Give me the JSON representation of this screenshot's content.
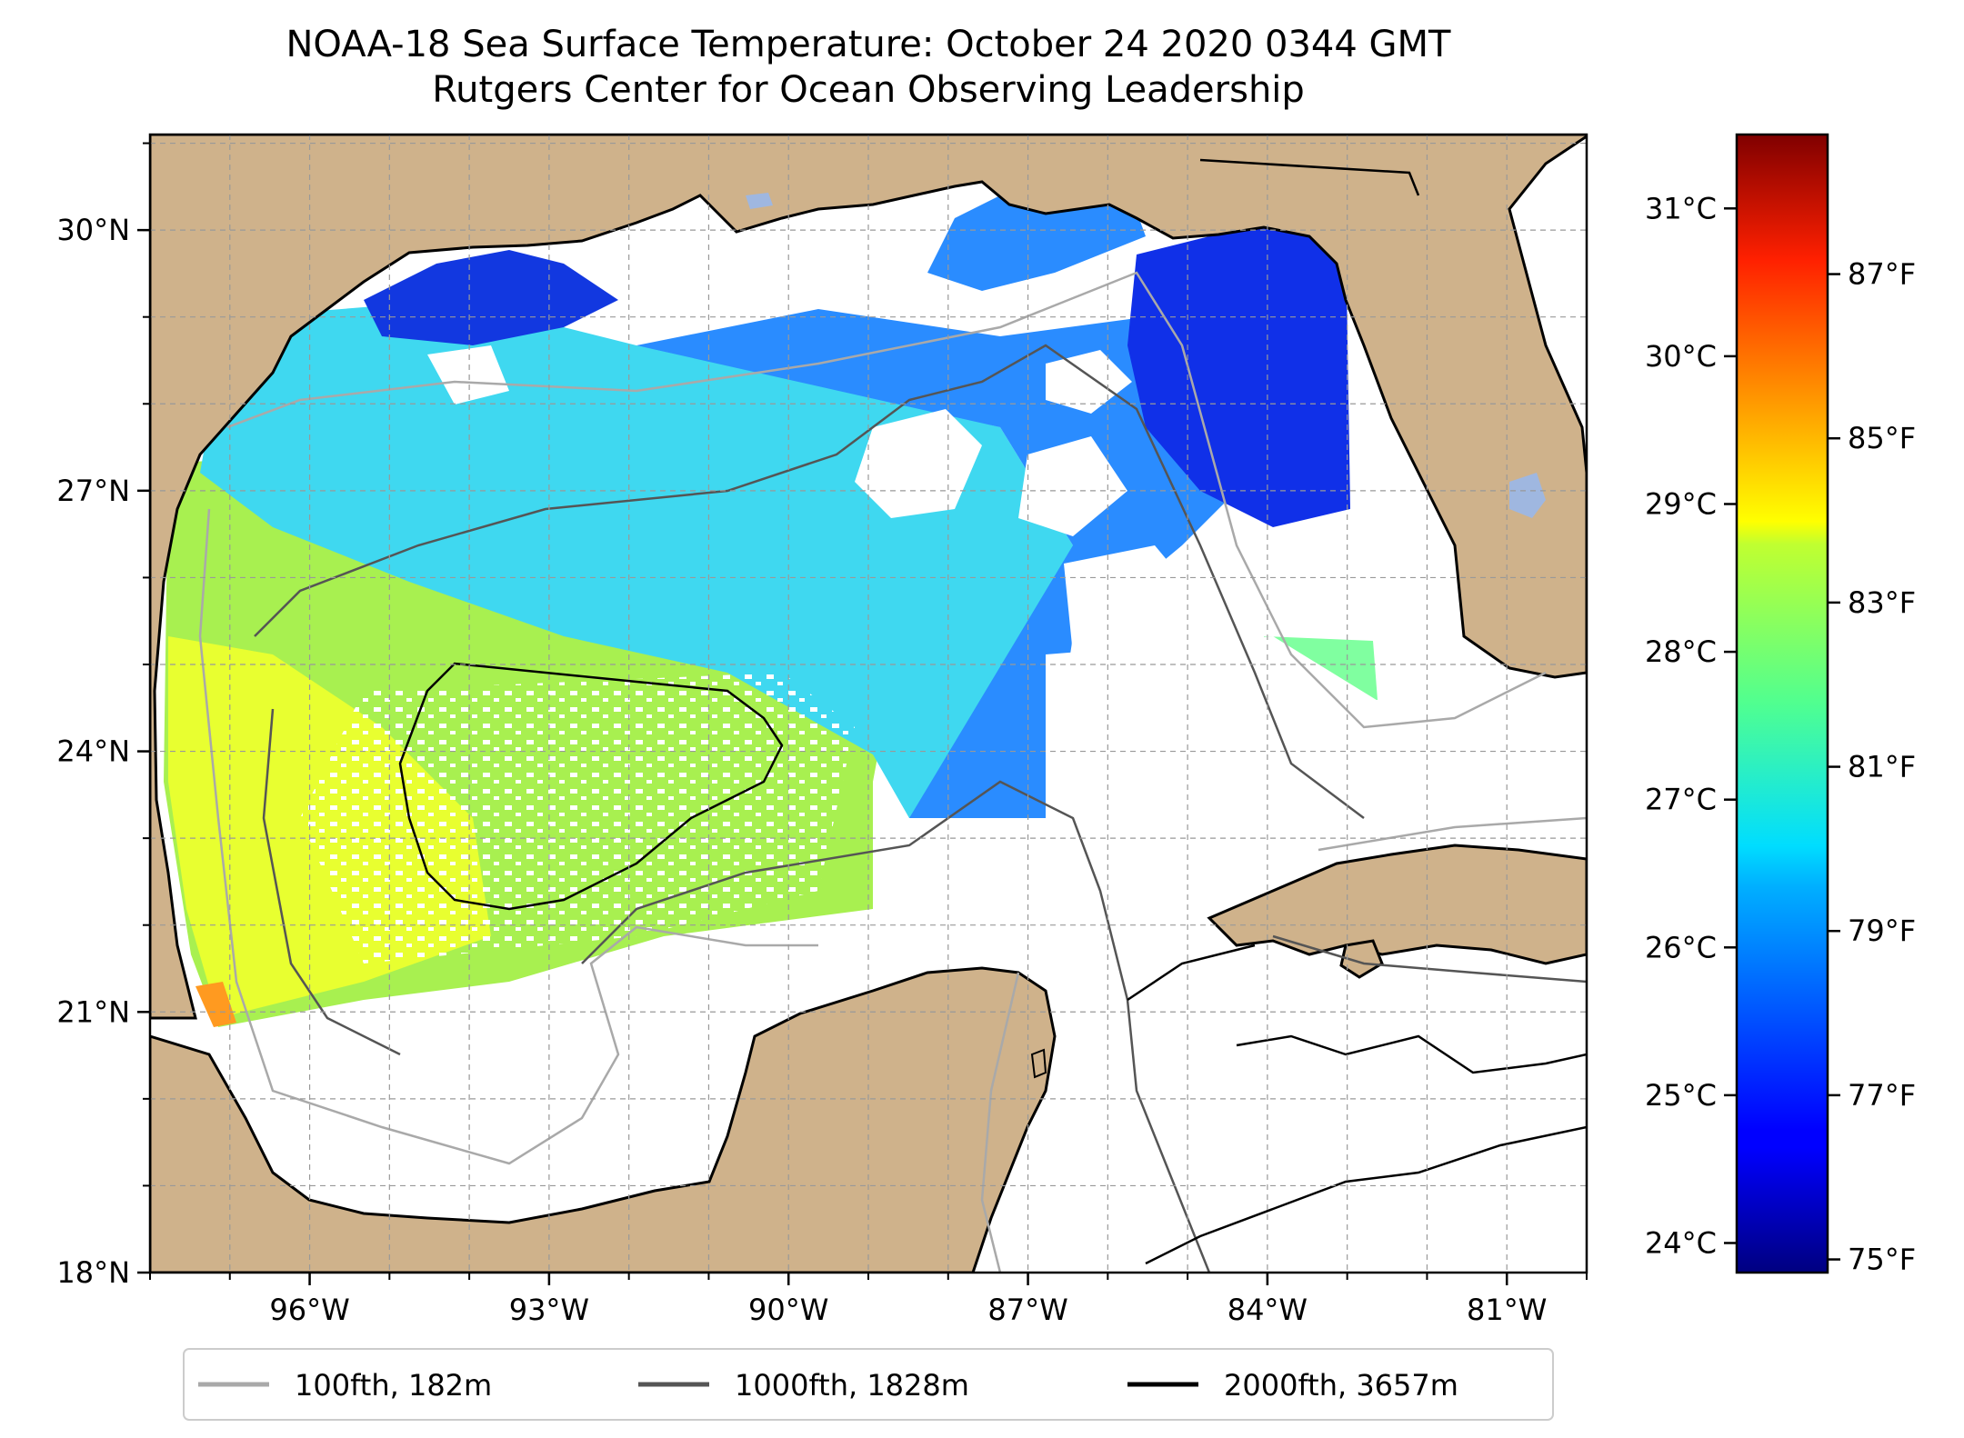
{
  "title": {
    "line1": "NOAA-18 Sea Surface Temperature: October 24 2020 0344 GMT",
    "line2": "Rutgers Center for Ocean Observing Leadership"
  },
  "map": {
    "lon_range": [
      -98.0,
      -80.0
    ],
    "lat_range": [
      18.0,
      31.1
    ],
    "lon_ticks": [
      {
        "value": -96,
        "label": "96°W"
      },
      {
        "value": -93,
        "label": "93°W"
      },
      {
        "value": -90,
        "label": "90°W"
      },
      {
        "value": -87,
        "label": "87°W"
      },
      {
        "value": -84,
        "label": "84°W"
      },
      {
        "value": -81,
        "label": "81°W"
      }
    ],
    "lat_ticks": [
      {
        "value": 18,
        "label": "18°N"
      },
      {
        "value": 21,
        "label": "21°N"
      },
      {
        "value": 24,
        "label": "24°N"
      },
      {
        "value": 27,
        "label": "27°N"
      },
      {
        "value": 30,
        "label": "30°N"
      }
    ],
    "gridlines": true,
    "land_color": "#cfb28b",
    "water_color": "#ffffff",
    "lake_color": "#9fb7e0"
  },
  "colorbar": {
    "colormap": "jet",
    "celsius_range": [
      23.8,
      31.5
    ],
    "celsius_ticks": [
      {
        "value": 24,
        "label": "24°C"
      },
      {
        "value": 25,
        "label": "25°C"
      },
      {
        "value": 26,
        "label": "26°C"
      },
      {
        "value": 27,
        "label": "27°C"
      },
      {
        "value": 28,
        "label": "28°C"
      },
      {
        "value": 29,
        "label": "29°C"
      },
      {
        "value": 30,
        "label": "30°C"
      },
      {
        "value": 31,
        "label": "31°C"
      }
    ],
    "fahrenheit_ticks": [
      {
        "value": 75,
        "label": "75°F"
      },
      {
        "value": 77,
        "label": "77°F"
      },
      {
        "value": 79,
        "label": "79°F"
      },
      {
        "value": 81,
        "label": "81°F"
      },
      {
        "value": 83,
        "label": "83°F"
      },
      {
        "value": 85,
        "label": "85°F"
      },
      {
        "value": 87,
        "label": "87°F"
      }
    ]
  },
  "legend": [
    {
      "label": "100fth, 182m",
      "color": "#a9a9a9"
    },
    {
      "label": "1000fth, 1828m",
      "color": "#555555"
    },
    {
      "label": "2000fth, 3657m",
      "color": "#000000"
    }
  ]
}
